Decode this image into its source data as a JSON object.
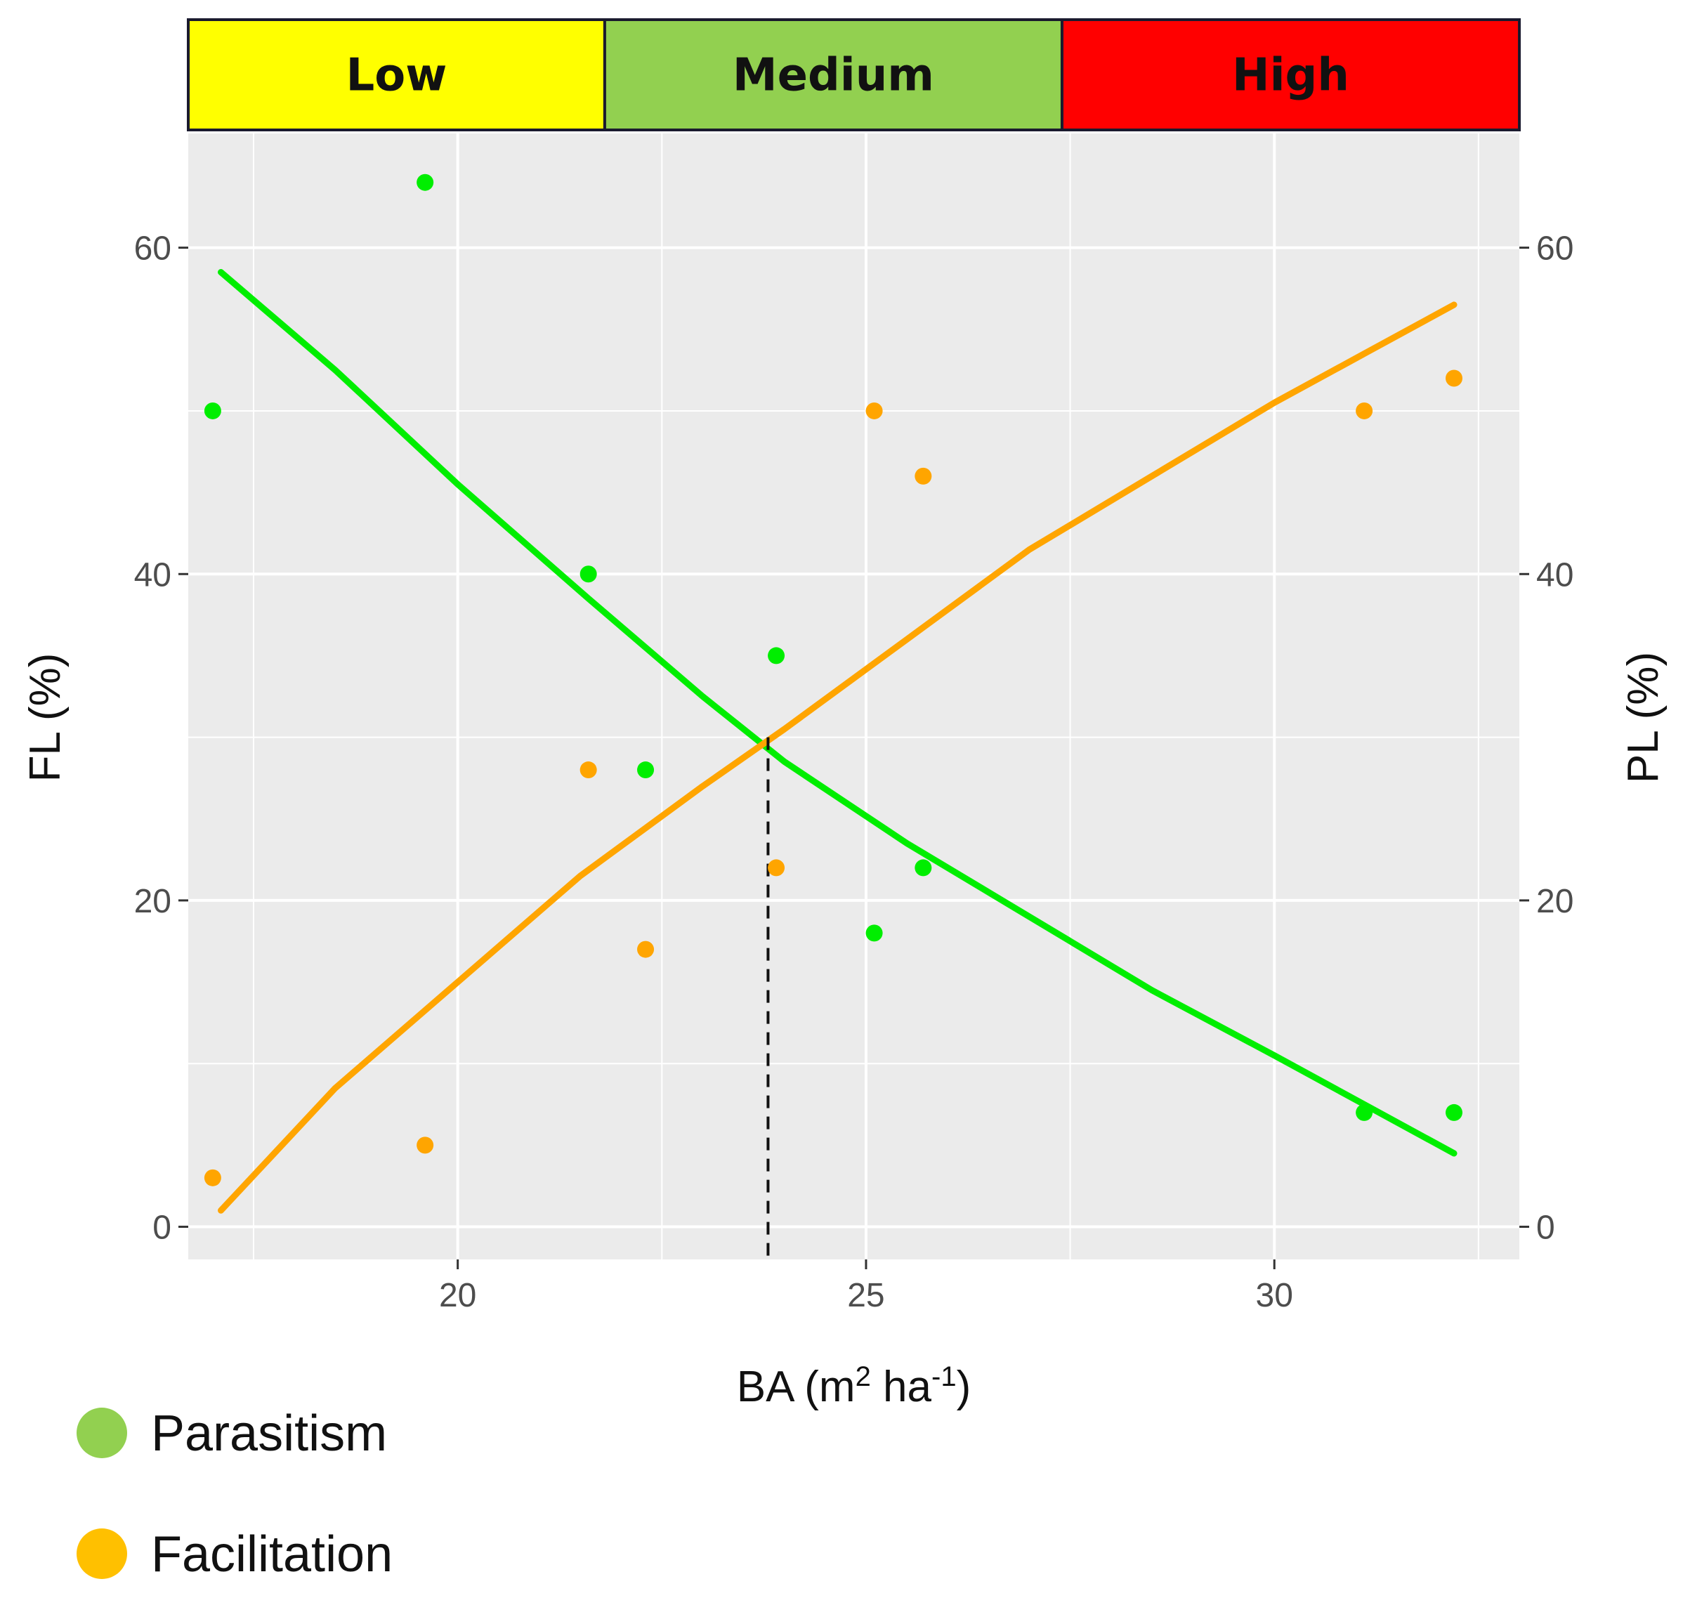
{
  "chart_data": {
    "type": "scatter",
    "bands": [
      {
        "label": "Low",
        "color": "#ffff00",
        "x_range": [
          16.7,
          21.8
        ]
      },
      {
        "label": "Medium",
        "color": "#92d050",
        "x_range": [
          21.8,
          27.4
        ]
      },
      {
        "label": "High",
        "color": "#ff0000",
        "x_range": [
          27.4,
          33.0
        ]
      }
    ],
    "xlabel": "BA (m",
    "xlabel_sup1": "2",
    "xlabel_mid": " ha",
    "xlabel_sup2": "-1",
    "xlabel_end": ")",
    "ylabel_left": "FL (%)",
    "ylabel_right": "PL (%)",
    "xlim": [
      16.7,
      33.0
    ],
    "ylim": [
      -2,
      67
    ],
    "x_ticks": [
      20,
      25,
      30
    ],
    "y_ticks": [
      0,
      20,
      40,
      60
    ],
    "grid": true,
    "background": "#ebebeb",
    "series": [
      {
        "name": "Parasitism",
        "color": "#00ee00",
        "legend_color": "#92d050",
        "points": [
          {
            "x": 17.0,
            "y": 50
          },
          {
            "x": 19.6,
            "y": 64
          },
          {
            "x": 21.6,
            "y": 40
          },
          {
            "x": 22.3,
            "y": 28
          },
          {
            "x": 23.9,
            "y": 35
          },
          {
            "x": 25.1,
            "y": 18
          },
          {
            "x": 25.7,
            "y": 22
          },
          {
            "x": 31.1,
            "y": 7
          },
          {
            "x": 32.2,
            "y": 7
          }
        ],
        "trend": [
          {
            "x": 17.1,
            "y": 58.5
          },
          {
            "x": 18.5,
            "y": 52.5
          },
          {
            "x": 20.0,
            "y": 45.5
          },
          {
            "x": 21.6,
            "y": 38.5
          },
          {
            "x": 23.0,
            "y": 32.5
          },
          {
            "x": 24.0,
            "y": 28.5
          },
          {
            "x": 25.5,
            "y": 23.5
          },
          {
            "x": 27.0,
            "y": 19.0
          },
          {
            "x": 28.5,
            "y": 14.5
          },
          {
            "x": 30.0,
            "y": 10.5
          },
          {
            "x": 31.1,
            "y": 7.5
          },
          {
            "x": 32.2,
            "y": 4.5
          }
        ]
      },
      {
        "name": "Facilitation",
        "color": "#ffa500",
        "legend_color": "#ffc000",
        "points": [
          {
            "x": 17.0,
            "y": 3
          },
          {
            "x": 19.6,
            "y": 5
          },
          {
            "x": 21.6,
            "y": 28
          },
          {
            "x": 22.3,
            "y": 17
          },
          {
            "x": 23.9,
            "y": 22
          },
          {
            "x": 25.1,
            "y": 50
          },
          {
            "x": 25.7,
            "y": 46
          },
          {
            "x": 31.1,
            "y": 50
          },
          {
            "x": 32.2,
            "y": 52
          }
        ],
        "trend": [
          {
            "x": 17.1,
            "y": 1.0
          },
          {
            "x": 18.5,
            "y": 8.5
          },
          {
            "x": 20.0,
            "y": 15.0
          },
          {
            "x": 21.5,
            "y": 21.5
          },
          {
            "x": 23.0,
            "y": 27.0
          },
          {
            "x": 24.0,
            "y": 30.5
          },
          {
            "x": 25.5,
            "y": 36.0
          },
          {
            "x": 27.0,
            "y": 41.5
          },
          {
            "x": 28.5,
            "y": 46.0
          },
          {
            "x": 30.0,
            "y": 50.5
          },
          {
            "x": 31.1,
            "y": 53.5
          },
          {
            "x": 32.2,
            "y": 56.5
          }
        ]
      }
    ],
    "crossover": {
      "x": 23.8,
      "y": 30
    }
  }
}
